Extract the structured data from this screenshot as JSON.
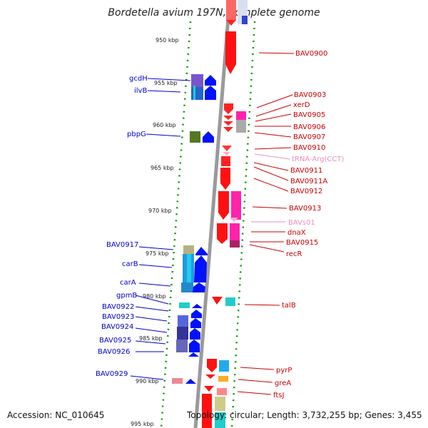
{
  "title": "Bordetella avium 197N, complete genome",
  "accession": "Accession: NC_010645",
  "topology": "Topology: circular; Length: 3,732,255 bp; Genes: 3,455",
  "colors": {
    "reverse_label": "#0000cc",
    "forward_label": "#cc0000",
    "rna_label": "#e88fbf",
    "backbone": "#999999",
    "tick_dots": "#008800"
  },
  "ruler_ticks": [
    "950 kbp",
    "955 kbp",
    "960 kbp",
    "965 kbp",
    "970 kbp",
    "975 kbp",
    "980 kbp",
    "985 kbp",
    "990 kbp",
    "995 kbp"
  ],
  "left_labels": [
    "gcdH",
    "ilvB",
    "pbpG",
    "BAV0917",
    "carB",
    "carA",
    "gpmB",
    "BAV0922",
    "BAV0923",
    "BAV0924",
    "BAV0925",
    "BAV0926",
    "BAV0929"
  ],
  "right_labels": [
    "BAV0900",
    "BAV0903",
    "xerD",
    "BAV0905",
    "BAV0906",
    "BAV0907",
    "BAV0910",
    "tRNA-Arg(CCT)",
    "BAV0911",
    "BAV0911A",
    "BAV0912",
    "BAV0913",
    "BAVs01",
    "dnaX",
    "BAV0915",
    "recR",
    "talB",
    "pyrP",
    "greA",
    "ftsJ"
  ]
}
